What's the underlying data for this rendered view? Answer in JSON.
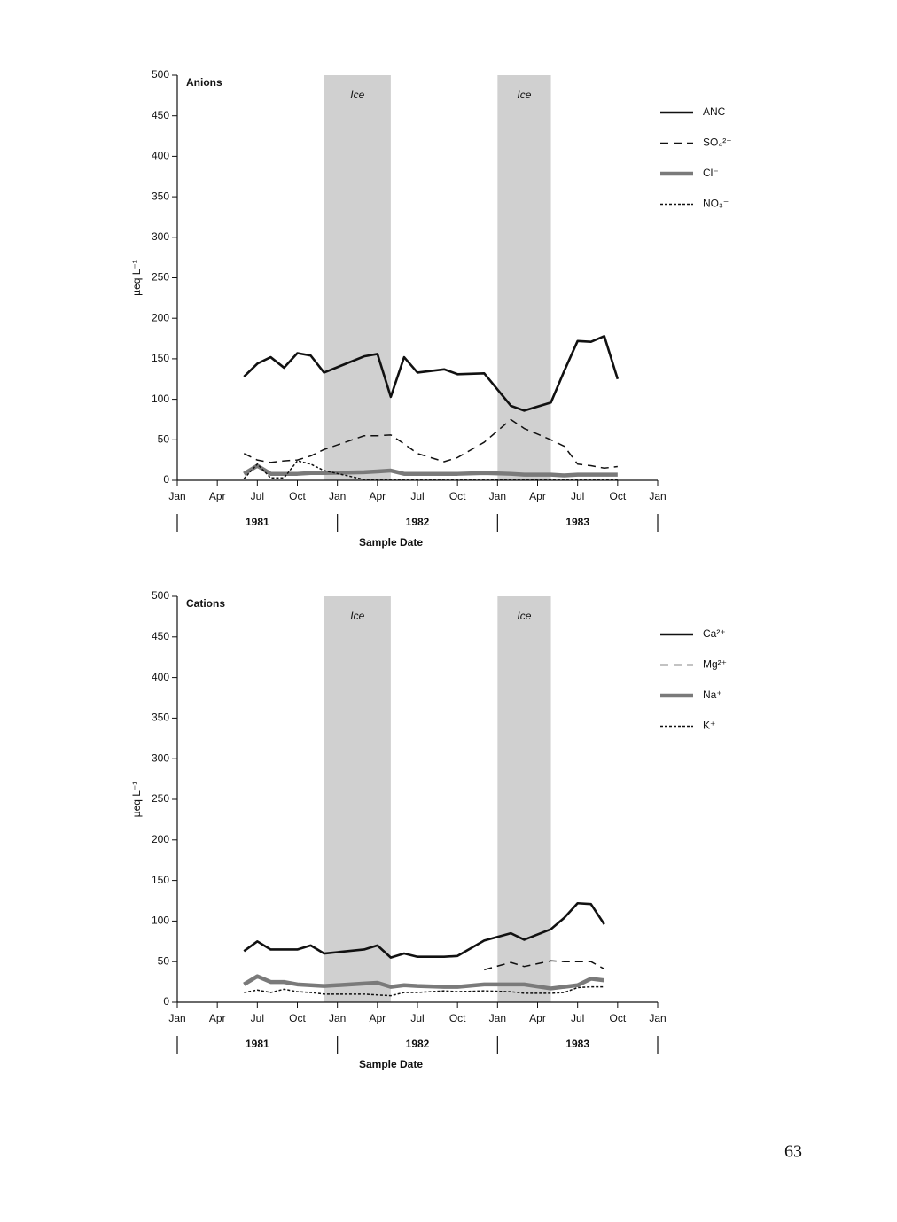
{
  "chart_data": [
    {
      "type": "line",
      "title": "Anions",
      "y_label": "µeq L⁻¹",
      "x_label": "Sample Date",
      "x": [
        "1981-06",
        "1981-07",
        "1981-08",
        "1981-09",
        "1981-10",
        "1981-11",
        "1981-12",
        "1982-03",
        "1982-04",
        "1982-05",
        "1982-06",
        "1982-07",
        "1982-09",
        "1982-10",
        "1982-12",
        "1983-02",
        "1983-03",
        "1983-05",
        "1983-06",
        "1983-07",
        "1983-08",
        "1983-09",
        "1983-10"
      ],
      "series": [
        {
          "name": "ANC",
          "color": "#111111",
          "style": "solid",
          "values": [
            128,
            144,
            152,
            139,
            157,
            154,
            133,
            153,
            156,
            103,
            152,
            133,
            137,
            131,
            132,
            92,
            86,
            96,
            135,
            172,
            171,
            178,
            125
          ]
        },
        {
          "name": "SO₄²⁻",
          "color": "#111111",
          "style": "dashed",
          "values": [
            33,
            25,
            22,
            24,
            25,
            30,
            38,
            55,
            55,
            56,
            45,
            33,
            23,
            28,
            47,
            75,
            64,
            50,
            42,
            20,
            18,
            15,
            17
          ]
        },
        {
          "name": "Cl⁻",
          "color": "#7a7a7a",
          "style": "thick",
          "values": [
            8,
            18,
            8,
            8,
            8,
            9,
            9,
            10,
            11,
            12,
            8,
            8,
            8,
            8,
            9,
            8,
            7,
            7,
            6,
            7,
            7,
            7,
            7
          ]
        },
        {
          "name": "NO₃⁻",
          "color": "#111111",
          "style": "dotted",
          "values": [
            2,
            20,
            3,
            3,
            24,
            20,
            12,
            1,
            1,
            1,
            1,
            1,
            1,
            1,
            1,
            1,
            1,
            1,
            1,
            1,
            1,
            1,
            1
          ]
        }
      ],
      "shaded_regions": [
        {
          "label": "Ice",
          "start": "1981-12",
          "end": "1982-05"
        },
        {
          "label": "Ice",
          "start": "1983-01",
          "end": "1983-05"
        }
      ],
      "xlim": [
        "1981-01",
        "1984-01"
      ],
      "xticks": [
        {
          "value": "1981-01",
          "label": "Jan"
        },
        {
          "value": "1981-04",
          "label": "Apr"
        },
        {
          "value": "1981-07",
          "label": "Jul"
        },
        {
          "value": "1981-10",
          "label": "Oct"
        },
        {
          "value": "1982-01",
          "label": "Jan"
        },
        {
          "value": "1982-04",
          "label": "Apr"
        },
        {
          "value": "1982-07",
          "label": "Jul"
        },
        {
          "value": "1982-10",
          "label": "Oct"
        },
        {
          "value": "1983-01",
          "label": "Jan"
        },
        {
          "value": "1983-04",
          "label": "Apr"
        },
        {
          "value": "1983-07",
          "label": "Jul"
        },
        {
          "value": "1983-10",
          "label": "Oct"
        },
        {
          "value": "1984-01",
          "label": "Jan"
        }
      ],
      "years": [
        "1981",
        "1982",
        "1983"
      ],
      "ylim": [
        0,
        500
      ],
      "yticks": [
        0,
        50,
        100,
        150,
        200,
        250,
        300,
        350,
        400,
        450,
        500
      ]
    },
    {
      "type": "line",
      "title": "Cations",
      "y_label": "µeq L⁻¹",
      "x_label": "Sample Date",
      "x": [
        "1981-06",
        "1981-07",
        "1981-08",
        "1981-09",
        "1981-10",
        "1981-11",
        "1981-12",
        "1982-03",
        "1982-04",
        "1982-05",
        "1982-06",
        "1982-07",
        "1982-09",
        "1982-10",
        "1982-12",
        "1983-02",
        "1983-03",
        "1983-05",
        "1983-06",
        "1983-07",
        "1983-08",
        "1983-09"
      ],
      "series": [
        {
          "name": "Ca²⁺",
          "color": "#111111",
          "style": "solid",
          "values": [
            63,
            75,
            65,
            65,
            65,
            70,
            60,
            65,
            70,
            55,
            60,
            56,
            56,
            57,
            76,
            85,
            77,
            90,
            104,
            122,
            121,
            96
          ]
        },
        {
          "name": "Mg²⁺",
          "color": "#111111",
          "style": "dashed",
          "values": [
            null,
            null,
            null,
            null,
            null,
            null,
            null,
            null,
            null,
            null,
            null,
            null,
            null,
            null,
            40,
            49,
            44,
            51,
            50,
            50,
            50,
            41
          ]
        },
        {
          "name": "Na⁺",
          "color": "#7a7a7a",
          "style": "thick",
          "values": [
            22,
            32,
            25,
            25,
            22,
            21,
            20,
            23,
            24,
            19,
            21,
            20,
            19,
            19,
            22,
            22,
            22,
            17,
            19,
            21,
            29,
            27
          ]
        },
        {
          "name": "K⁺",
          "color": "#111111",
          "style": "dotted",
          "values": [
            12,
            15,
            12,
            16,
            13,
            12,
            10,
            10,
            9,
            8,
            12,
            12,
            14,
            13,
            14,
            13,
            11,
            11,
            12,
            18,
            19,
            19
          ]
        }
      ],
      "shaded_regions": [
        {
          "label": "Ice",
          "start": "1981-12",
          "end": "1982-05"
        },
        {
          "label": "Ice",
          "start": "1983-01",
          "end": "1983-05"
        }
      ],
      "xlim": [
        "1981-01",
        "1984-01"
      ],
      "xticks": [
        {
          "value": "1981-01",
          "label": "Jan"
        },
        {
          "value": "1981-04",
          "label": "Apr"
        },
        {
          "value": "1981-07",
          "label": "Jul"
        },
        {
          "value": "1981-10",
          "label": "Oct"
        },
        {
          "value": "1982-01",
          "label": "Jan"
        },
        {
          "value": "1982-04",
          "label": "Apr"
        },
        {
          "value": "1982-07",
          "label": "Jul"
        },
        {
          "value": "1982-10",
          "label": "Oct"
        },
        {
          "value": "1983-01",
          "label": "Jan"
        },
        {
          "value": "1983-04",
          "label": "Apr"
        },
        {
          "value": "1983-07",
          "label": "Jul"
        },
        {
          "value": "1983-10",
          "label": "Oct"
        },
        {
          "value": "1984-01",
          "label": "Jan"
        }
      ],
      "years": [
        "1981",
        "1982",
        "1983"
      ],
      "ylim": [
        0,
        500
      ],
      "yticks": [
        0,
        50,
        100,
        150,
        200,
        250,
        300,
        350,
        400,
        450,
        500
      ]
    }
  ],
  "page_number": "63"
}
